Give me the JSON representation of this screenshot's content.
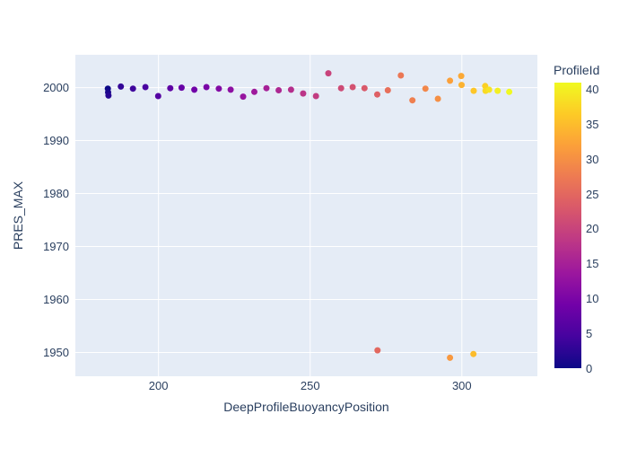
{
  "figure": {
    "x_axis_title": "DeepProfileBuoyancyPosition",
    "y_axis_title": "PRES_MAX",
    "colorbar_title": "ProfileId"
  },
  "colors": {
    "paper_bg": "#ffffff",
    "plot_bg": "#e5ecf6",
    "grid": "#ffffff",
    "text": "#2a3f5f"
  },
  "chart_data": {
    "type": "scatter",
    "title": "",
    "xlabel": "DeepProfileBuoyancyPosition",
    "ylabel": "PRES_MAX",
    "x_range": [
      172.6,
      324.9
    ],
    "y_range": [
      1945.5,
      2006.2
    ],
    "x_ticks": [
      200,
      250,
      300
    ],
    "y_ticks": [
      1950,
      1960,
      1970,
      1980,
      1990,
      2000
    ],
    "grid": true,
    "marker_size_px": 7,
    "color_field": "ProfileId",
    "colorbar": {
      "title": "ProfileId",
      "ticks": [
        0,
        5,
        10,
        15,
        20,
        25,
        30,
        35,
        40
      ],
      "range": [
        0,
        41
      ],
      "position": "right"
    },
    "colorscale_plasma": [
      "#0d0887",
      "#46039f",
      "#7201a8",
      "#9c179e",
      "#bd3786",
      "#d8576b",
      "#ed7953",
      "#fb9f3a",
      "#fdca26",
      "#f0f921"
    ],
    "points": [
      {
        "x": 183.3,
        "y": 1999.8,
        "ProfileId": 0
      },
      {
        "x": 183.4,
        "y": 1999.1,
        "ProfileId": 1
      },
      {
        "x": 183.5,
        "y": 1998.5,
        "ProfileId": 2
      },
      {
        "x": 187.6,
        "y": 2000.2,
        "ProfileId": 3
      },
      {
        "x": 191.6,
        "y": 1999.8,
        "ProfileId": 4
      },
      {
        "x": 195.7,
        "y": 2000.1,
        "ProfileId": 5
      },
      {
        "x": 199.9,
        "y": 1998.4,
        "ProfileId": 6
      },
      {
        "x": 203.9,
        "y": 1999.9,
        "ProfileId": 7
      },
      {
        "x": 207.6,
        "y": 2000.0,
        "ProfileId": 8
      },
      {
        "x": 211.8,
        "y": 1999.6,
        "ProfileId": 9
      },
      {
        "x": 215.8,
        "y": 2000.1,
        "ProfileId": 10
      },
      {
        "x": 219.9,
        "y": 1999.8,
        "ProfileId": 11
      },
      {
        "x": 223.8,
        "y": 1999.6,
        "ProfileId": 12
      },
      {
        "x": 227.9,
        "y": 1998.3,
        "ProfileId": 13
      },
      {
        "x": 231.6,
        "y": 1999.2,
        "ProfileId": 14
      },
      {
        "x": 235.6,
        "y": 1999.9,
        "ProfileId": 15
      },
      {
        "x": 239.6,
        "y": 1999.5,
        "ProfileId": 16
      },
      {
        "x": 243.7,
        "y": 1999.6,
        "ProfileId": 17
      },
      {
        "x": 247.7,
        "y": 1998.9,
        "ProfileId": 18
      },
      {
        "x": 251.9,
        "y": 1998.4,
        "ProfileId": 19
      },
      {
        "x": 256.0,
        "y": 2002.7,
        "ProfileId": 20
      },
      {
        "x": 260.2,
        "y": 1999.9,
        "ProfileId": 21
      },
      {
        "x": 264.0,
        "y": 2000.1,
        "ProfileId": 22
      },
      {
        "x": 267.9,
        "y": 1999.9,
        "ProfileId": 23
      },
      {
        "x": 272.1,
        "y": 1998.7,
        "ProfileId": 24
      },
      {
        "x": 272.2,
        "y": 1950.4,
        "ProfileId": 25
      },
      {
        "x": 275.6,
        "y": 1999.5,
        "ProfileId": 26
      },
      {
        "x": 279.9,
        "y": 2002.3,
        "ProfileId": 27
      },
      {
        "x": 283.7,
        "y": 1997.6,
        "ProfileId": 28
      },
      {
        "x": 288.0,
        "y": 1999.8,
        "ProfileId": 29
      },
      {
        "x": 292.1,
        "y": 1997.9,
        "ProfileId": 30
      },
      {
        "x": 296.1,
        "y": 1949.0,
        "ProfileId": 31
      },
      {
        "x": 296.1,
        "y": 2001.3,
        "ProfileId": 32
      },
      {
        "x": 299.8,
        "y": 2002.2,
        "ProfileId": 33
      },
      {
        "x": 299.9,
        "y": 2000.5,
        "ProfileId": 34
      },
      {
        "x": 303.8,
        "y": 1949.7,
        "ProfileId": 35
      },
      {
        "x": 303.9,
        "y": 1999.4,
        "ProfileId": 36
      },
      {
        "x": 307.7,
        "y": 2000.3,
        "ProfileId": 37
      },
      {
        "x": 307.8,
        "y": 1999.4,
        "ProfileId": 38
      },
      {
        "x": 309.0,
        "y": 1999.6,
        "ProfileId": 39
      },
      {
        "x": 311.8,
        "y": 1999.4,
        "ProfileId": 40
      },
      {
        "x": 315.6,
        "y": 1999.2,
        "ProfileId": 41
      }
    ]
  }
}
